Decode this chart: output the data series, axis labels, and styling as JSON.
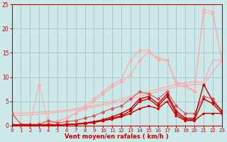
{
  "xlabel": "Vent moyen/en rafales ( km/h )",
  "x": [
    0,
    1,
    2,
    3,
    4,
    5,
    6,
    7,
    8,
    9,
    10,
    11,
    12,
    13,
    14,
    15,
    16,
    17,
    18,
    19,
    20,
    21,
    22,
    23
  ],
  "line_gust_high": [
    2.5,
    0.3,
    0.3,
    8.5,
    0.5,
    1.0,
    1.5,
    2.5,
    4.0,
    5.5,
    7.0,
    8.5,
    9.5,
    13.5,
    15.5,
    15.5,
    13.5,
    13.5,
    9.0,
    8.5,
    7.0,
    24.0,
    23.5,
    13.5
  ],
  "line_gust_low": [
    2.5,
    0.2,
    0.2,
    0.5,
    0.3,
    0.8,
    1.5,
    2.5,
    3.5,
    5.0,
    6.5,
    8.0,
    9.0,
    10.5,
    13.5,
    15.0,
    14.0,
    13.5,
    8.5,
    8.0,
    7.0,
    23.5,
    23.0,
    13.5
  ],
  "line_trend1": [
    2.5,
    2.55,
    2.65,
    2.75,
    2.85,
    3.0,
    3.2,
    3.5,
    3.8,
    4.1,
    4.5,
    5.0,
    5.5,
    6.0,
    6.5,
    7.0,
    7.5,
    8.0,
    8.5,
    8.8,
    9.0,
    9.0,
    13.5,
    13.5
  ],
  "line_trend2": [
    2.0,
    2.1,
    2.2,
    2.35,
    2.5,
    2.7,
    2.9,
    3.2,
    3.5,
    3.8,
    4.2,
    4.6,
    5.0,
    5.5,
    6.0,
    6.5,
    7.0,
    7.5,
    8.0,
    8.2,
    8.5,
    8.5,
    11.0,
    13.5
  ],
  "line_medium": [
    2.5,
    0.3,
    0.2,
    0.2,
    1.0,
    0.5,
    0.8,
    1.0,
    1.5,
    2.0,
    2.8,
    3.5,
    4.0,
    5.5,
    7.0,
    6.5,
    5.5,
    7.0,
    4.0,
    2.5,
    2.5,
    6.0,
    5.5,
    3.0
  ],
  "line_dark1": [
    0.2,
    0.1,
    0.05,
    0.05,
    0.2,
    0.1,
    0.2,
    0.3,
    0.5,
    0.8,
    1.2,
    1.8,
    2.5,
    3.5,
    5.5,
    6.0,
    4.5,
    6.5,
    3.0,
    1.5,
    1.5,
    8.5,
    5.0,
    3.0
  ],
  "line_dark2": [
    0.1,
    0.05,
    0.0,
    0.0,
    0.1,
    0.1,
    0.15,
    0.2,
    0.4,
    0.6,
    1.0,
    1.5,
    2.0,
    3.0,
    5.0,
    5.5,
    4.0,
    6.0,
    2.5,
    1.2,
    1.2,
    5.5,
    4.5,
    2.5
  ],
  "line_flat": [
    0.1,
    0.1,
    0.1,
    0.1,
    0.1,
    0.1,
    0.2,
    0.3,
    0.5,
    0.7,
    1.0,
    1.3,
    1.8,
    2.5,
    3.5,
    4.0,
    3.5,
    5.0,
    2.0,
    1.0,
    1.0,
    2.5,
    2.5,
    2.5
  ],
  "bg_color": "#cde8e8",
  "grid_color": "#9bbfbf",
  "color_dark_red": "#cc0000",
  "color_medium_red": "#dd5555",
  "color_light_pink": "#ffaaaa",
  "color_pale_pink": "#ffcccc",
  "ylim": [
    0,
    25
  ],
  "xlim": [
    0,
    23
  ],
  "yticks": [
    0,
    5,
    10,
    15,
    20,
    25
  ]
}
